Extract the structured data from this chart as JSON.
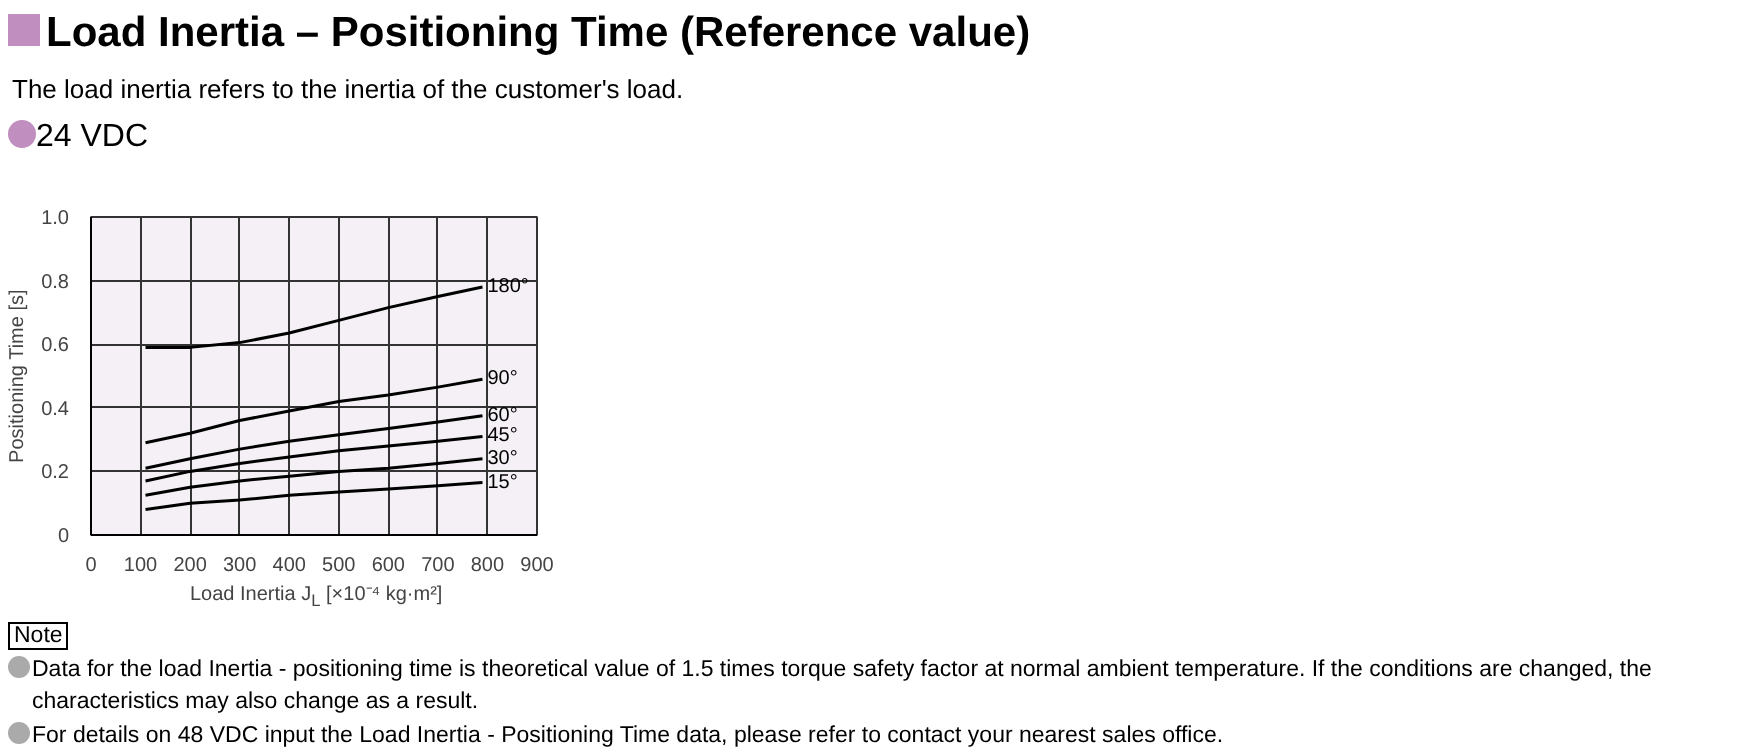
{
  "chart_data": {
    "type": "line",
    "title": "Load Inertia – Positioning Time (Reference value)",
    "annotations": [
      "The load inertia refers to the inertia of the customer's load.",
      "24 VDC",
      "Note",
      "Data for the load Inertia - positioning time is theoretical value of 1.5 times torque safety factor at normal ambient temperature. If the conditions are changed, the characteristics may also change as a result.",
      "For details on 48 VDC input the Load Inertia - Positioning Time data, please refer to contact your nearest sales office."
    ],
    "xlabel": "Load Inertia J$_{L}$ [×10⁻⁴ kg·m²]",
    "ylabel": "Positioning Time [s]",
    "x": [
      110,
      200,
      300,
      400,
      500,
      600,
      700,
      790
    ],
    "series": [
      {
        "name": "180°",
        "color": "#000000",
        "values": [
          0.59,
          0.59,
          0.605,
          0.635,
          0.675,
          0.715,
          0.75,
          0.78
        ]
      },
      {
        "name": "90°",
        "color": "#000000",
        "values": [
          0.29,
          0.32,
          0.36,
          0.39,
          0.42,
          0.44,
          0.465,
          0.49
        ]
      },
      {
        "name": "60°",
        "color": "#000000",
        "values": [
          0.21,
          0.24,
          0.27,
          0.295,
          0.315,
          0.335,
          0.355,
          0.375
        ]
      },
      {
        "name": "45°",
        "color": "#000000",
        "values": [
          0.17,
          0.2,
          0.225,
          0.245,
          0.265,
          0.28,
          0.295,
          0.31
        ]
      },
      {
        "name": "30°",
        "color": "#000000",
        "values": [
          0.125,
          0.15,
          0.17,
          0.185,
          0.2,
          0.21,
          0.225,
          0.24
        ]
      },
      {
        "name": "15°",
        "color": "#000000",
        "values": [
          0.08,
          0.1,
          0.11,
          0.125,
          0.135,
          0.145,
          0.155,
          0.165
        ]
      }
    ],
    "xlim": [
      0,
      900
    ],
    "xticks": [
      0,
      100,
      200,
      300,
      400,
      500,
      600,
      700,
      800,
      900
    ],
    "ylim": [
      0,
      1
    ],
    "yticks": [
      0,
      0.2,
      0.4,
      0.6,
      0.8,
      {
        "value": 1,
        "label": "1.0"
      }
    ],
    "grid": true,
    "line_style": "solid",
    "marker": "none"
  }
}
